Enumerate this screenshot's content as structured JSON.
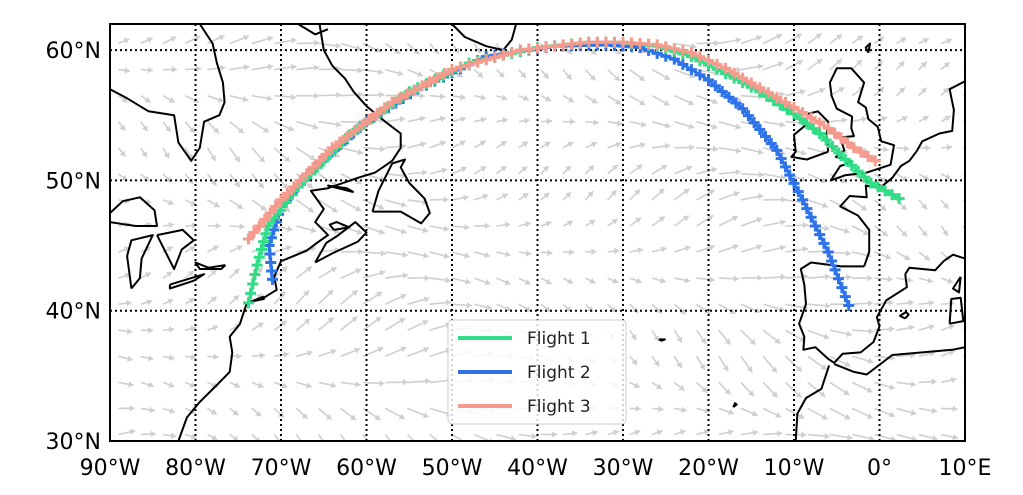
{
  "chart_data": {
    "type": "map",
    "projection": "plate-carree",
    "xlim": [
      -90,
      10
    ],
    "ylim": [
      30,
      62
    ],
    "x_ticks": [
      {
        "value": -90,
        "label": "90°W"
      },
      {
        "value": -80,
        "label": "80°W"
      },
      {
        "value": -70,
        "label": "70°W"
      },
      {
        "value": -60,
        "label": "60°W"
      },
      {
        "value": -50,
        "label": "50°W"
      },
      {
        "value": -40,
        "label": "40°W"
      },
      {
        "value": -30,
        "label": "30°W"
      },
      {
        "value": -20,
        "label": "20°W"
      },
      {
        "value": -10,
        "label": "10°W"
      },
      {
        "value": 0,
        "label": "0°"
      },
      {
        "value": 10,
        "label": "10°E"
      }
    ],
    "y_ticks": [
      {
        "value": 30,
        "label": "30°N"
      },
      {
        "value": 40,
        "label": "40°N"
      },
      {
        "value": 50,
        "label": "50°N"
      },
      {
        "value": 60,
        "label": "60°N"
      }
    ],
    "gridlines": {
      "lon": [
        -80,
        -70,
        -60,
        -50,
        -40,
        -30,
        -20,
        -10,
        0
      ],
      "lat": [
        40,
        50,
        60
      ]
    },
    "legend": {
      "position": "bottom-center"
    },
    "series": [
      {
        "name": "Flight 1",
        "color": "#33dd88",
        "points": [
          [
            -73.8,
            40.6
          ],
          [
            -72.8,
            43.5
          ],
          [
            -71.5,
            46.5
          ],
          [
            -68,
            49.5
          ],
          [
            -62,
            53.5
          ],
          [
            -55,
            56.8
          ],
          [
            -48,
            59
          ],
          [
            -40,
            60.2
          ],
          [
            -34,
            60.6
          ],
          [
            -30,
            60.6
          ],
          [
            -26,
            60.3
          ],
          [
            -22,
            59.5
          ],
          [
            -18,
            58.2
          ],
          [
            -14,
            56.8
          ],
          [
            -10,
            55.1
          ],
          [
            -7,
            53.6
          ],
          [
            -4,
            51.6
          ],
          [
            -1,
            49.8
          ],
          [
            2.3,
            48.6
          ]
        ]
      },
      {
        "name": "Flight 2",
        "color": "#2e73ea",
        "points": [
          [
            -71,
            42.4
          ],
          [
            -71.4,
            45
          ],
          [
            -70,
            48
          ],
          [
            -66,
            51
          ],
          [
            -60,
            54.5
          ],
          [
            -54,
            57
          ],
          [
            -46,
            59.5
          ],
          [
            -38,
            60.3
          ],
          [
            -32,
            60.4
          ],
          [
            -28,
            60.2
          ],
          [
            -24,
            59.3
          ],
          [
            -20,
            57.7
          ],
          [
            -16,
            55.5
          ],
          [
            -12,
            52.3
          ],
          [
            -9,
            48.5
          ],
          [
            -6,
            44.5
          ],
          [
            -3.6,
            40.4
          ]
        ]
      },
      {
        "name": "Flight 3",
        "color": "#f59a8c",
        "points": [
          [
            -73.8,
            45.5
          ],
          [
            -70,
            48.5
          ],
          [
            -64,
            52.5
          ],
          [
            -57,
            56
          ],
          [
            -50,
            58.5
          ],
          [
            -42,
            60
          ],
          [
            -34,
            60.6
          ],
          [
            -30,
            60.6
          ],
          [
            -26,
            60.4
          ],
          [
            -22,
            59.8
          ],
          [
            -18,
            58.6
          ],
          [
            -14,
            57.1
          ],
          [
            -10,
            55.6
          ],
          [
            -6,
            54
          ],
          [
            -3,
            52.5
          ],
          [
            -0.5,
            51.5
          ]
        ]
      }
    ],
    "wind_arrow_color": "#cfcfcf"
  }
}
